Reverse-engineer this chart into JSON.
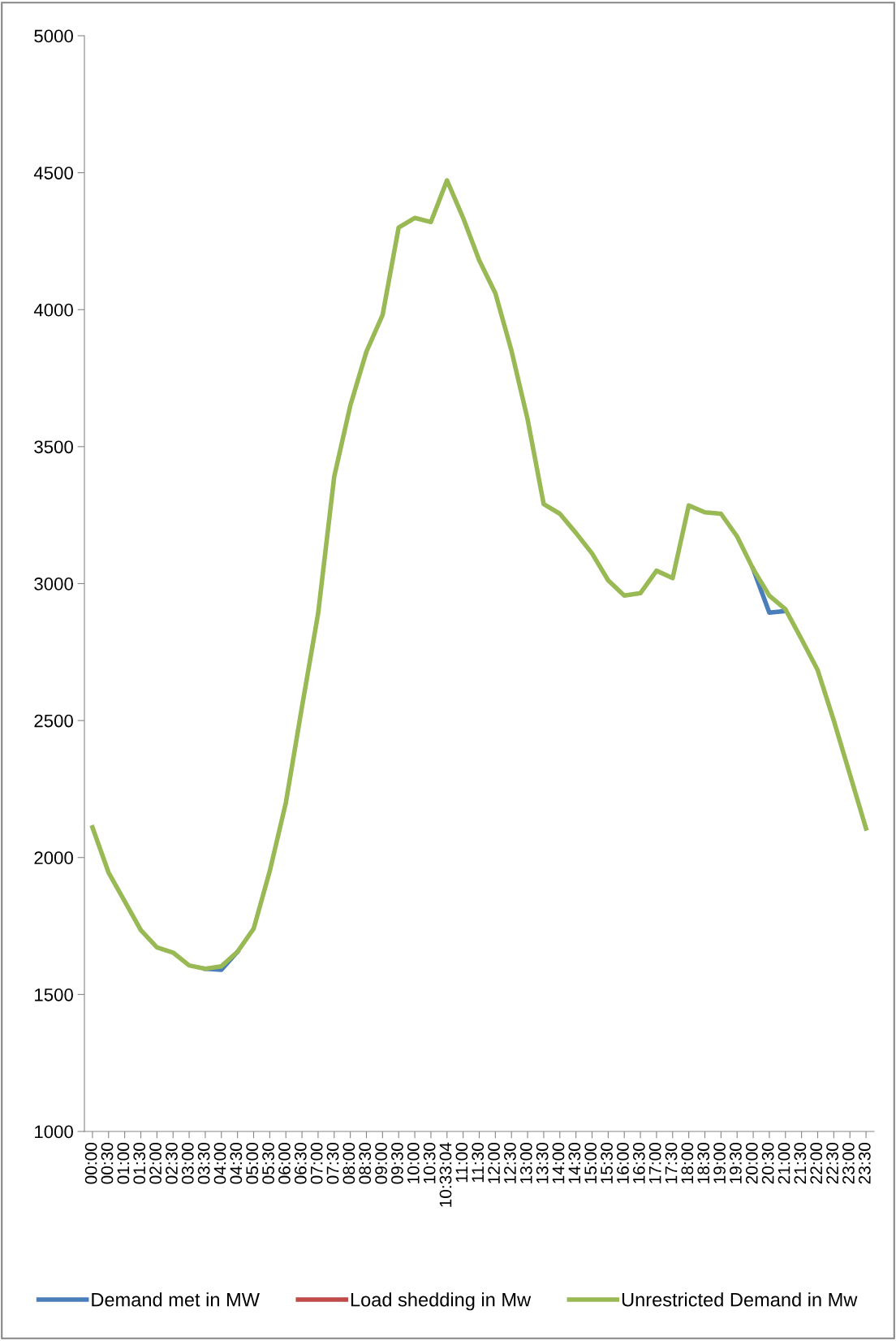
{
  "chart_data": {
    "type": "line",
    "categories": [
      "00:00",
      "00:30",
      "01:00",
      "01:30",
      "02:00",
      "02:30",
      "03:00",
      "03:30",
      "04:00",
      "04:30",
      "05:00",
      "05:30",
      "06:00",
      "06:30",
      "07:00",
      "07:30",
      "08:00",
      "08:30",
      "09:00",
      "09:30",
      "10:00",
      "10:30",
      "10:33:04",
      "11:00",
      "11:30",
      "12:00",
      "12:30",
      "13:00",
      "13:30",
      "14:00",
      "14:30",
      "15:00",
      "15:30",
      "16:00",
      "16:30",
      "17:00",
      "17:30",
      "18:00",
      "18:30",
      "19:00",
      "19:30",
      "20:00",
      "20:30",
      "21:00",
      "21:30",
      "22:00",
      "22:30",
      "23:00",
      "23:30"
    ],
    "series": [
      {
        "name": "Demand met in MW",
        "color": "#4a7ebb",
        "values": [
          null,
          null,
          null,
          null,
          null,
          null,
          null,
          1594,
          1590,
          1656,
          null,
          null,
          null,
          null,
          null,
          null,
          null,
          null,
          null,
          null,
          null,
          null,
          null,
          null,
          null,
          null,
          null,
          null,
          null,
          null,
          null,
          null,
          null,
          null,
          null,
          null,
          null,
          null,
          null,
          null,
          null,
          3053,
          2894,
          2900,
          null,
          null,
          null,
          null,
          null
        ]
      },
      {
        "name": "Load shedding in Mw",
        "color": "#be4b48",
        "values": [
          null,
          null,
          null,
          null,
          null,
          null,
          null,
          null,
          null,
          null,
          null,
          null,
          null,
          null,
          null,
          null,
          null,
          null,
          null,
          null,
          null,
          null,
          null,
          null,
          null,
          null,
          null,
          null,
          null,
          null,
          null,
          null,
          null,
          null,
          null,
          null,
          null,
          null,
          null,
          null,
          null,
          null,
          null,
          null,
          null,
          null,
          null,
          null,
          null
        ]
      },
      {
        "name": "Unrestricted Demand in Mw",
        "color": "#98b954",
        "values": [
          2110,
          1945,
          1840,
          1735,
          1672,
          1653,
          1606,
          1594,
          1603,
          1656,
          1740,
          1950,
          2200,
          2550,
          2890,
          3390,
          3650,
          3847,
          3980,
          4300,
          4335,
          4320,
          4472,
          4335,
          4180,
          4060,
          3850,
          3600,
          3290,
          3255,
          3185,
          3110,
          3012,
          2956,
          2965,
          3047,
          3020,
          3285,
          3260,
          3255,
          3172,
          3053,
          2956,
          2906,
          2797,
          2684,
          2500,
          2303,
          2106
        ]
      }
    ],
    "ylim": [
      1000,
      5000
    ],
    "yticks": [
      1000,
      1500,
      2000,
      2500,
      3000,
      3500,
      4000,
      4500,
      5000
    ],
    "grid": false,
    "legend": "bottom",
    "marker": "none",
    "line_style": "solid"
  }
}
